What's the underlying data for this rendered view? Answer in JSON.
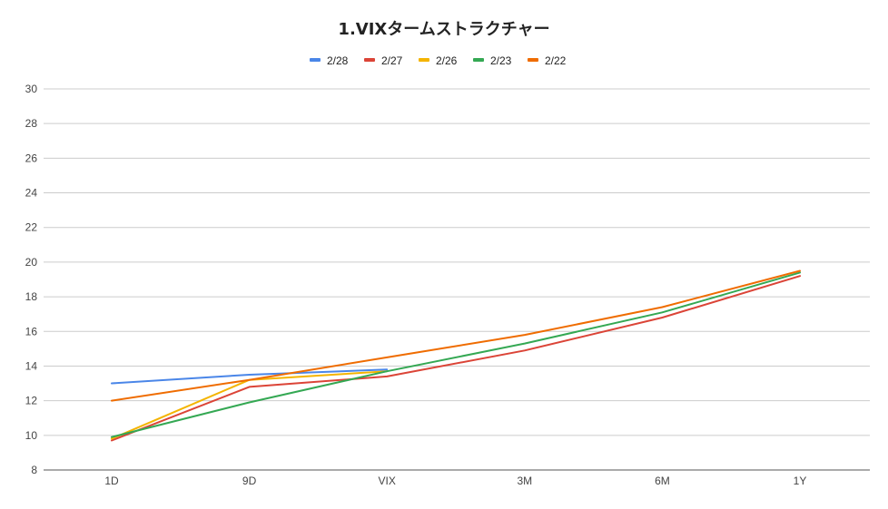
{
  "chart_data": {
    "type": "line",
    "title": "1.VIXタームストラクチャー",
    "xlabel": "",
    "ylabel": "",
    "categories": [
      "1D",
      "9D",
      "VIX",
      "3M",
      "6M",
      "1Y"
    ],
    "ylim": [
      8,
      30
    ],
    "yticks": [
      8,
      10,
      12,
      14,
      16,
      18,
      20,
      22,
      24,
      26,
      28,
      30
    ],
    "grid": true,
    "legend_position": "top",
    "series": [
      {
        "name": "2/28",
        "color": "#4a86e8",
        "values": [
          13.0,
          13.5,
          13.8,
          null,
          null,
          null
        ]
      },
      {
        "name": "2/27",
        "color": "#db4437",
        "values": [
          9.7,
          12.8,
          13.4,
          14.9,
          16.8,
          19.2
        ]
      },
      {
        "name": "2/26",
        "color": "#f4b400",
        "values": [
          9.8,
          13.2,
          13.7,
          null,
          null,
          null
        ]
      },
      {
        "name": "2/23",
        "color": "#34a853",
        "values": [
          9.9,
          11.9,
          13.7,
          15.3,
          17.1,
          19.4
        ]
      },
      {
        "name": "2/22",
        "color": "#ef6c00",
        "values": [
          12.0,
          13.2,
          14.5,
          15.8,
          17.4,
          19.5
        ]
      }
    ]
  }
}
